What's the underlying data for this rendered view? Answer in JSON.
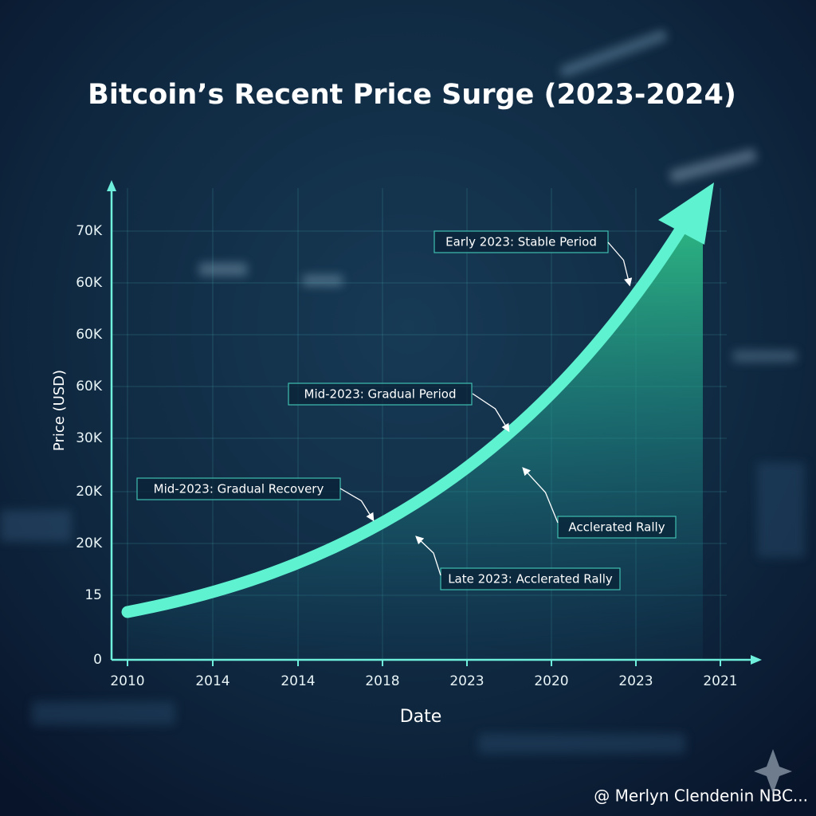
{
  "title": "Bitcoin’s Recent Price Surge (2023-2024)",
  "y_axis": {
    "label": "Price (USD)",
    "tick_labels": [
      "70K",
      "60K",
      "60K",
      "60K",
      "30K",
      "20K",
      "20K",
      "15",
      "0"
    ]
  },
  "x_axis": {
    "label": "Date",
    "tick_labels": [
      "2010",
      "2014",
      "2014",
      "2018",
      "2023",
      "2020",
      "2023",
      "2021"
    ]
  },
  "annotations": [
    "Early 2023: Stable Period",
    "Mid-2023: Gradual Period",
    "Mid-2023: Gradual Recovery",
    "Acclerated Rally",
    "Late 2023: Acclerated Rally"
  ],
  "watermark": "@ Merlyn Clendenin NBC..."
}
